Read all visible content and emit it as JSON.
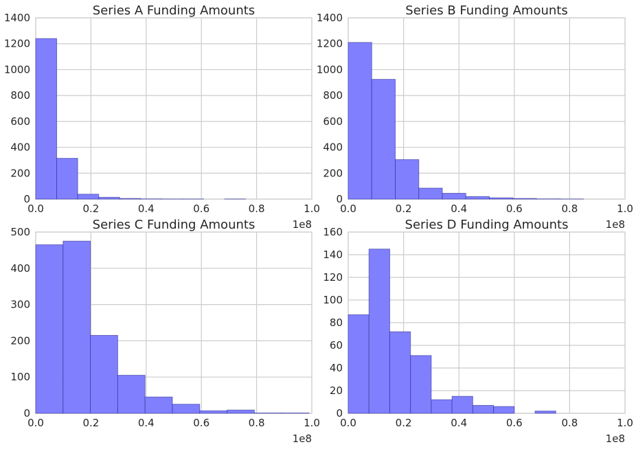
{
  "colors": {
    "bar_fill": "#8080ff",
    "grid": "#cccccc",
    "text": "#262626"
  },
  "chart_data": [
    {
      "type": "bar",
      "title": "Series A Funding Amounts",
      "xlabel": "",
      "ylabel": "",
      "x_offset_label": "1e8",
      "xlim": [
        0,
        1.0
      ],
      "ylim": [
        0,
        1400
      ],
      "xticks": [
        "0.0",
        "0.2",
        "0.4",
        "0.6",
        "0.8",
        "1.0"
      ],
      "yticks": [
        "0",
        "200",
        "400",
        "600",
        "800",
        "1000",
        "1200",
        "1400"
      ],
      "bin_edges": [
        0,
        0.076,
        0.152,
        0.228,
        0.304,
        0.38,
        0.456,
        0.532,
        0.608,
        0.684,
        0.76
      ],
      "values": [
        1240,
        315,
        38,
        14,
        5,
        2,
        1,
        1,
        0,
        1
      ],
      "grid": true
    },
    {
      "type": "bar",
      "title": "Series B Funding Amounts",
      "xlabel": "",
      "ylabel": "",
      "x_offset_label": "1e8",
      "xlim": [
        0,
        1.0
      ],
      "ylim": [
        0,
        1400
      ],
      "xticks": [
        "0.0",
        "0.2",
        "0.4",
        "0.6",
        "0.8",
        "1.0"
      ],
      "yticks": [
        "0",
        "200",
        "400",
        "600",
        "800",
        "1000",
        "1200",
        "1400"
      ],
      "bin_edges": [
        0,
        0.085,
        0.17,
        0.255,
        0.34,
        0.425,
        0.51,
        0.595,
        0.68,
        0.765,
        0.85
      ],
      "values": [
        1210,
        925,
        305,
        85,
        45,
        20,
        10,
        5,
        2,
        1
      ],
      "grid": true
    },
    {
      "type": "bar",
      "title": "Series C Funding Amounts",
      "xlabel": "",
      "ylabel": "",
      "x_offset_label": "1e8",
      "xlim": [
        0,
        1.0
      ],
      "ylim": [
        0,
        500
      ],
      "xticks": [
        "0.0",
        "0.2",
        "0.4",
        "0.6",
        "0.8",
        "1.0"
      ],
      "yticks": [
        "0",
        "100",
        "200",
        "300",
        "400",
        "500"
      ],
      "bin_edges": [
        0,
        0.099,
        0.198,
        0.297,
        0.396,
        0.495,
        0.594,
        0.693,
        0.792,
        0.891,
        0.99
      ],
      "values": [
        465,
        475,
        215,
        105,
        45,
        25,
        7,
        9,
        1,
        1
      ],
      "grid": true
    },
    {
      "type": "bar",
      "title": "Series D Funding Amounts",
      "xlabel": "",
      "ylabel": "",
      "x_offset_label": "1e8",
      "xlim": [
        0,
        1.0
      ],
      "ylim": [
        0,
        160
      ],
      "xticks": [
        "0.0",
        "0.2",
        "0.4",
        "0.6",
        "0.8",
        "1.0"
      ],
      "yticks": [
        "0",
        "20",
        "40",
        "60",
        "80",
        "100",
        "120",
        "140",
        "160"
      ],
      "bin_edges": [
        0,
        0.075,
        0.15,
        0.225,
        0.3,
        0.375,
        0.45,
        0.525,
        0.6,
        0.675,
        0.75
      ],
      "values": [
        87,
        145,
        72,
        51,
        12,
        15,
        7,
        6,
        0,
        2
      ],
      "grid": true
    }
  ]
}
